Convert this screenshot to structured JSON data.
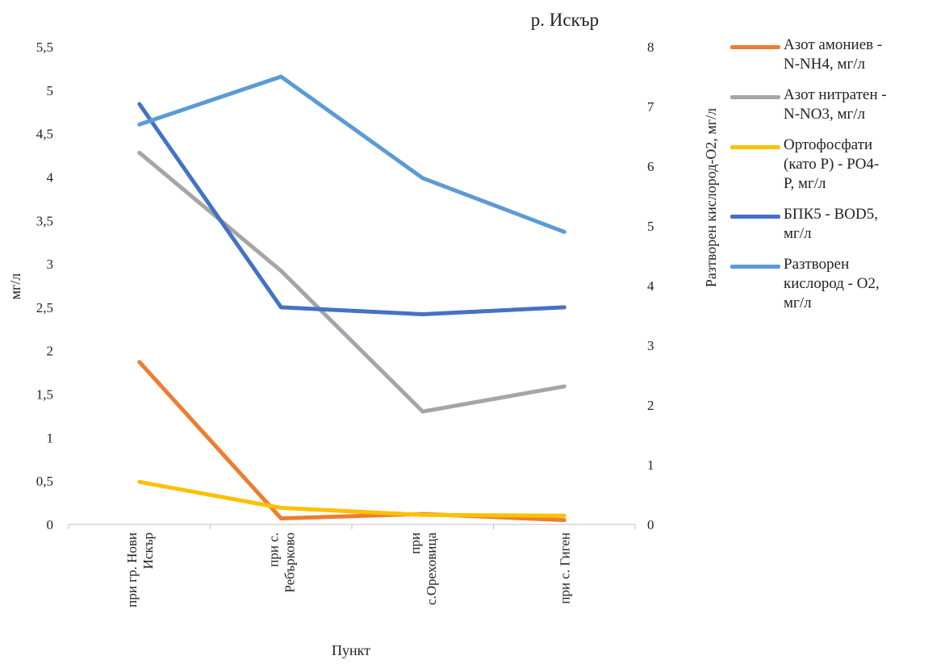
{
  "chart_data": {
    "type": "line",
    "title": "р. Искър",
    "xlabel": "Пункт",
    "ylabel": "мг/л",
    "y2label": "Разтворен кислород-O2, мг/л",
    "categories": [
      [
        "при гр. Нови",
        "Искър"
      ],
      [
        "при с.",
        "Ребърково"
      ],
      [
        "при",
        "с.Ореховица"
      ],
      [
        "при с. Гиген"
      ]
    ],
    "ylim": [
      0,
      5.5
    ],
    "yticks": [
      "0",
      "0,5",
      "1",
      "1,5",
      "2",
      "2,5",
      "3",
      "3,5",
      "4",
      "4,5",
      "5",
      "5,5"
    ],
    "y2lim": [
      0,
      8
    ],
    "y2ticks": [
      "0",
      "1",
      "2",
      "3",
      "4",
      "5",
      "6",
      "7",
      "8"
    ],
    "grid": false,
    "legend_position": "right",
    "series": [
      {
        "name": [
          "Азот амониев -",
          "N-NH4, мг/л"
        ],
        "color": "#ED7D31",
        "axis": "left",
        "values": [
          1.87,
          0.07,
          0.12,
          0.05
        ]
      },
      {
        "name": [
          "Азот нитратен -",
          "N-NO3, мг/л"
        ],
        "color": "#A5A5A5",
        "axis": "left",
        "values": [
          4.28,
          2.92,
          1.3,
          1.59
        ]
      },
      {
        "name": [
          "Ортофосфати",
          "(като Р) - PO4-",
          "P, мг/л"
        ],
        "color": "#FFC000",
        "axis": "left",
        "values": [
          0.49,
          0.19,
          0.11,
          0.1
        ]
      },
      {
        "name": [
          "БПК5 - BOD5,",
          "мг/л"
        ],
        "color": "#4472C4",
        "axis": "left",
        "values": [
          4.84,
          2.5,
          2.42,
          2.5
        ]
      },
      {
        "name": [
          "Разтворен",
          "кислород - O2,",
          "мг/л"
        ],
        "color": "#5B9BD5",
        "axis": "right",
        "values": [
          6.7,
          7.5,
          5.8,
          4.9
        ]
      }
    ]
  }
}
